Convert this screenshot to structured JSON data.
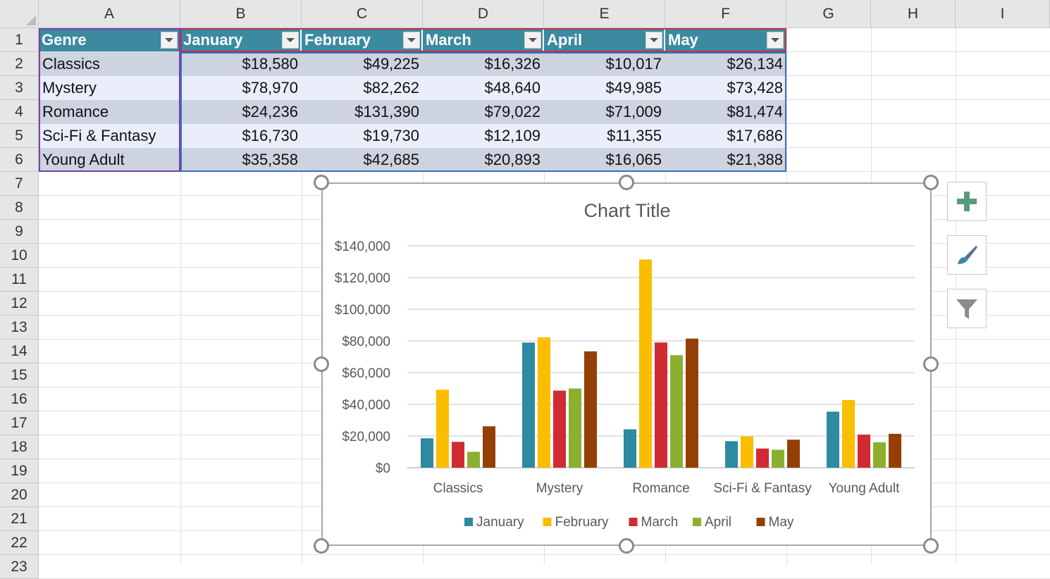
{
  "columns": [
    "A",
    "B",
    "C",
    "D",
    "E",
    "F",
    "G",
    "H",
    "I"
  ],
  "rows": [
    "1",
    "2",
    "3",
    "4",
    "5",
    "6",
    "7",
    "8",
    "9",
    "10",
    "11",
    "12",
    "13",
    "14",
    "15",
    "16",
    "17",
    "18",
    "19",
    "20",
    "21",
    "22",
    "23"
  ],
  "table": {
    "headers": [
      "Genre",
      "January",
      "February",
      "March",
      "April",
      "May"
    ],
    "rows": [
      [
        "Classics",
        "$18,580",
        "$49,225",
        "$16,326",
        "$10,017",
        "$26,134"
      ],
      [
        "Mystery",
        "$78,970",
        "$82,262",
        "$48,640",
        "$49,985",
        "$73,428"
      ],
      [
        "Romance",
        "$24,236",
        "$131,390",
        "$79,022",
        "$71,009",
        "$81,474"
      ],
      [
        "Sci-Fi & Fantasy",
        "$16,730",
        "$19,730",
        "$12,109",
        "$11,355",
        "$17,686"
      ],
      [
        "Young Adult",
        "$35,358",
        "$42,685",
        "$20,893",
        "$16,065",
        "$21,388"
      ]
    ],
    "header_color": "#3b8aa0",
    "band_colors": [
      "#cdd3df",
      "#e9eefa"
    ]
  },
  "chart_data": {
    "type": "bar",
    "title": "Chart Title",
    "categories": [
      "Classics",
      "Mystery",
      "Romance",
      "Sci-Fi & Fantasy",
      "Young Adult"
    ],
    "series": [
      {
        "name": "January",
        "color": "#2e8aa0",
        "values": [
          18580,
          78970,
          24236,
          16730,
          35358
        ]
      },
      {
        "name": "February",
        "color": "#fbbd00",
        "values": [
          49225,
          82262,
          131390,
          19730,
          42685
        ]
      },
      {
        "name": "March",
        "color": "#d02b33",
        "values": [
          16326,
          48640,
          79022,
          12109,
          20893
        ]
      },
      {
        "name": "April",
        "color": "#8bb030",
        "values": [
          10017,
          49985,
          71009,
          11355,
          16065
        ]
      },
      {
        "name": "May",
        "color": "#953f05",
        "values": [
          26134,
          73428,
          81474,
          17686,
          21388
        ]
      }
    ],
    "ylim": [
      0,
      140000
    ],
    "yticks": [
      "$0",
      "$20,000",
      "$40,000",
      "$60,000",
      "$80,000",
      "$100,000",
      "$120,000",
      "$140,000"
    ],
    "grid": true,
    "legend": "bottom"
  },
  "side_buttons": [
    {
      "icon": "plus-icon",
      "label": "Chart Elements"
    },
    {
      "icon": "brush-icon",
      "label": "Chart Styles"
    },
    {
      "icon": "filter-icon",
      "label": "Chart Filters"
    }
  ]
}
